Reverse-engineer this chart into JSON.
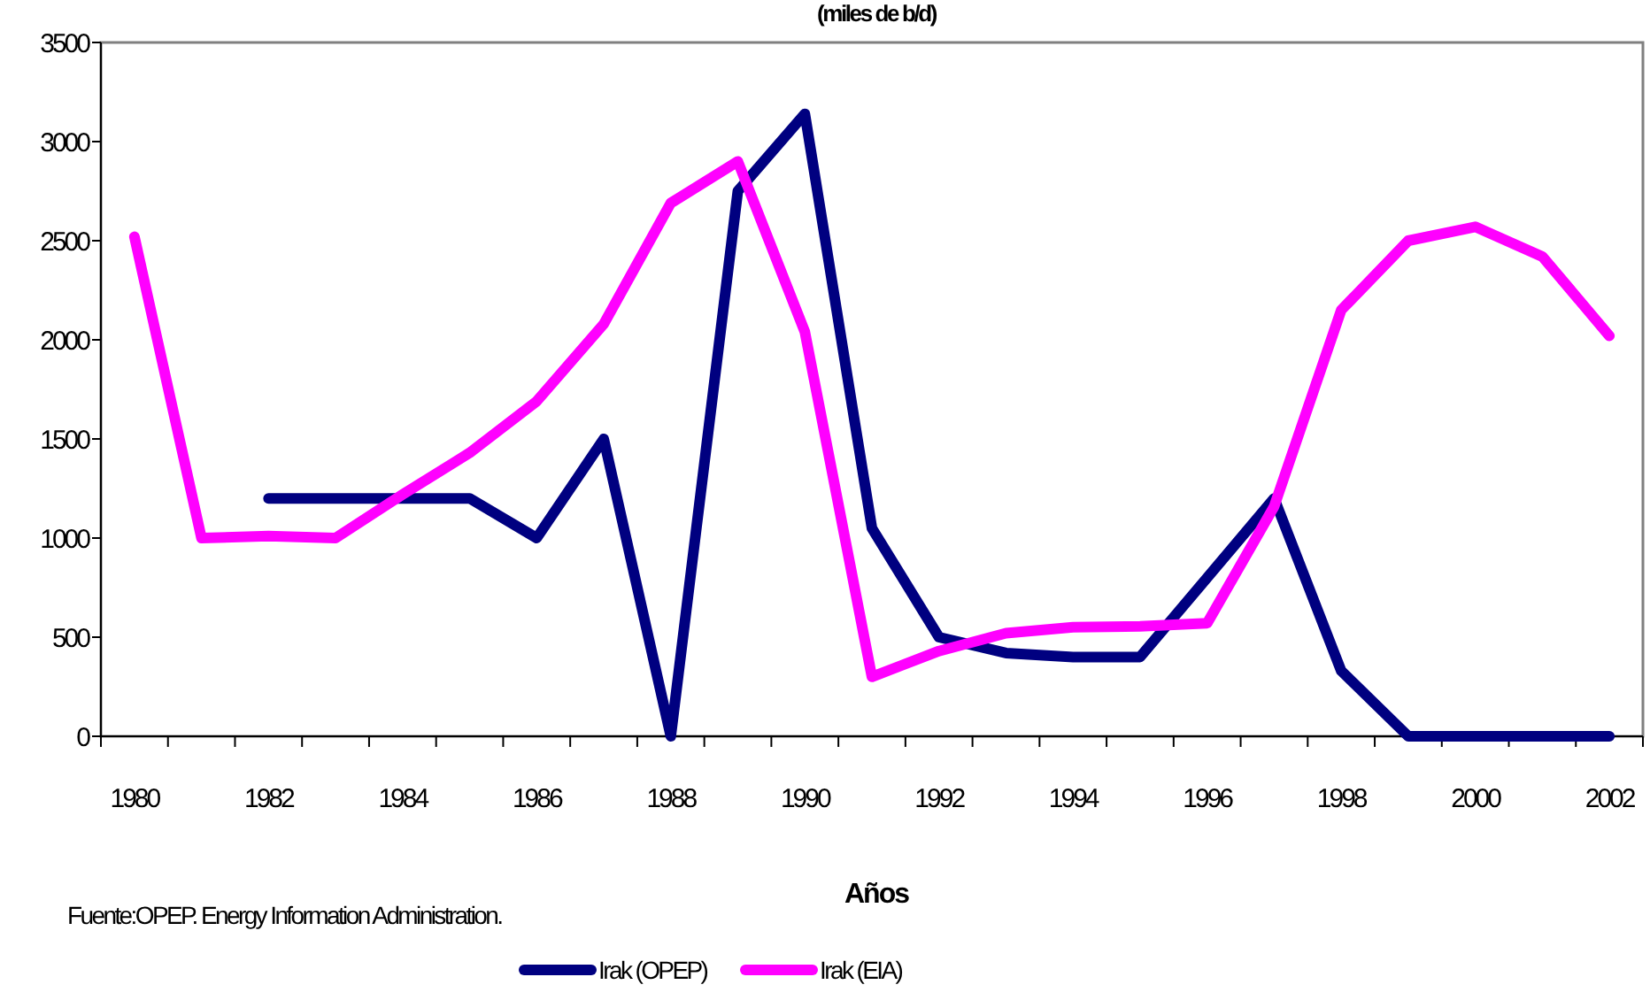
{
  "chart_data": {
    "type": "line",
    "title": "(miles de b/d)",
    "xlabel": "Años",
    "categories": [
      "1980",
      null,
      "1982",
      null,
      "1984",
      null,
      "1986",
      null,
      "1988",
      null,
      "1990",
      null,
      "1992",
      null,
      "1994",
      null,
      "1996",
      null,
      "1998",
      null,
      "2000",
      null,
      "2002"
    ],
    "series": [
      {
        "name": "Irak (OPEP)",
        "color": "#000080",
        "values": [
          null,
          null,
          1200,
          1200,
          1200,
          1200,
          1000,
          1500,
          0,
          2750,
          3140,
          1050,
          500,
          420,
          400,
          400,
          800,
          1200,
          330,
          0,
          0,
          0,
          0
        ]
      },
      {
        "name": "Irak (EIA)",
        "color": "#ff00ff",
        "values": [
          2520,
          1000,
          1010,
          1000,
          1220,
          1430,
          1690,
          2080,
          2690,
          2900,
          2040,
          300,
          430,
          520,
          550,
          555,
          570,
          1160,
          2150,
          2500,
          2570,
          2420,
          2020
        ]
      }
    ],
    "ylim": [
      0,
      3500
    ],
    "yticks": [
      0,
      500,
      1000,
      1500,
      2000,
      2500,
      3000,
      3500
    ],
    "grid": false,
    "legend": "bottom",
    "marker": "none",
    "line_style": "solid",
    "annotations": [
      "Fuente:OPEP. Energy Information Administration."
    ]
  }
}
